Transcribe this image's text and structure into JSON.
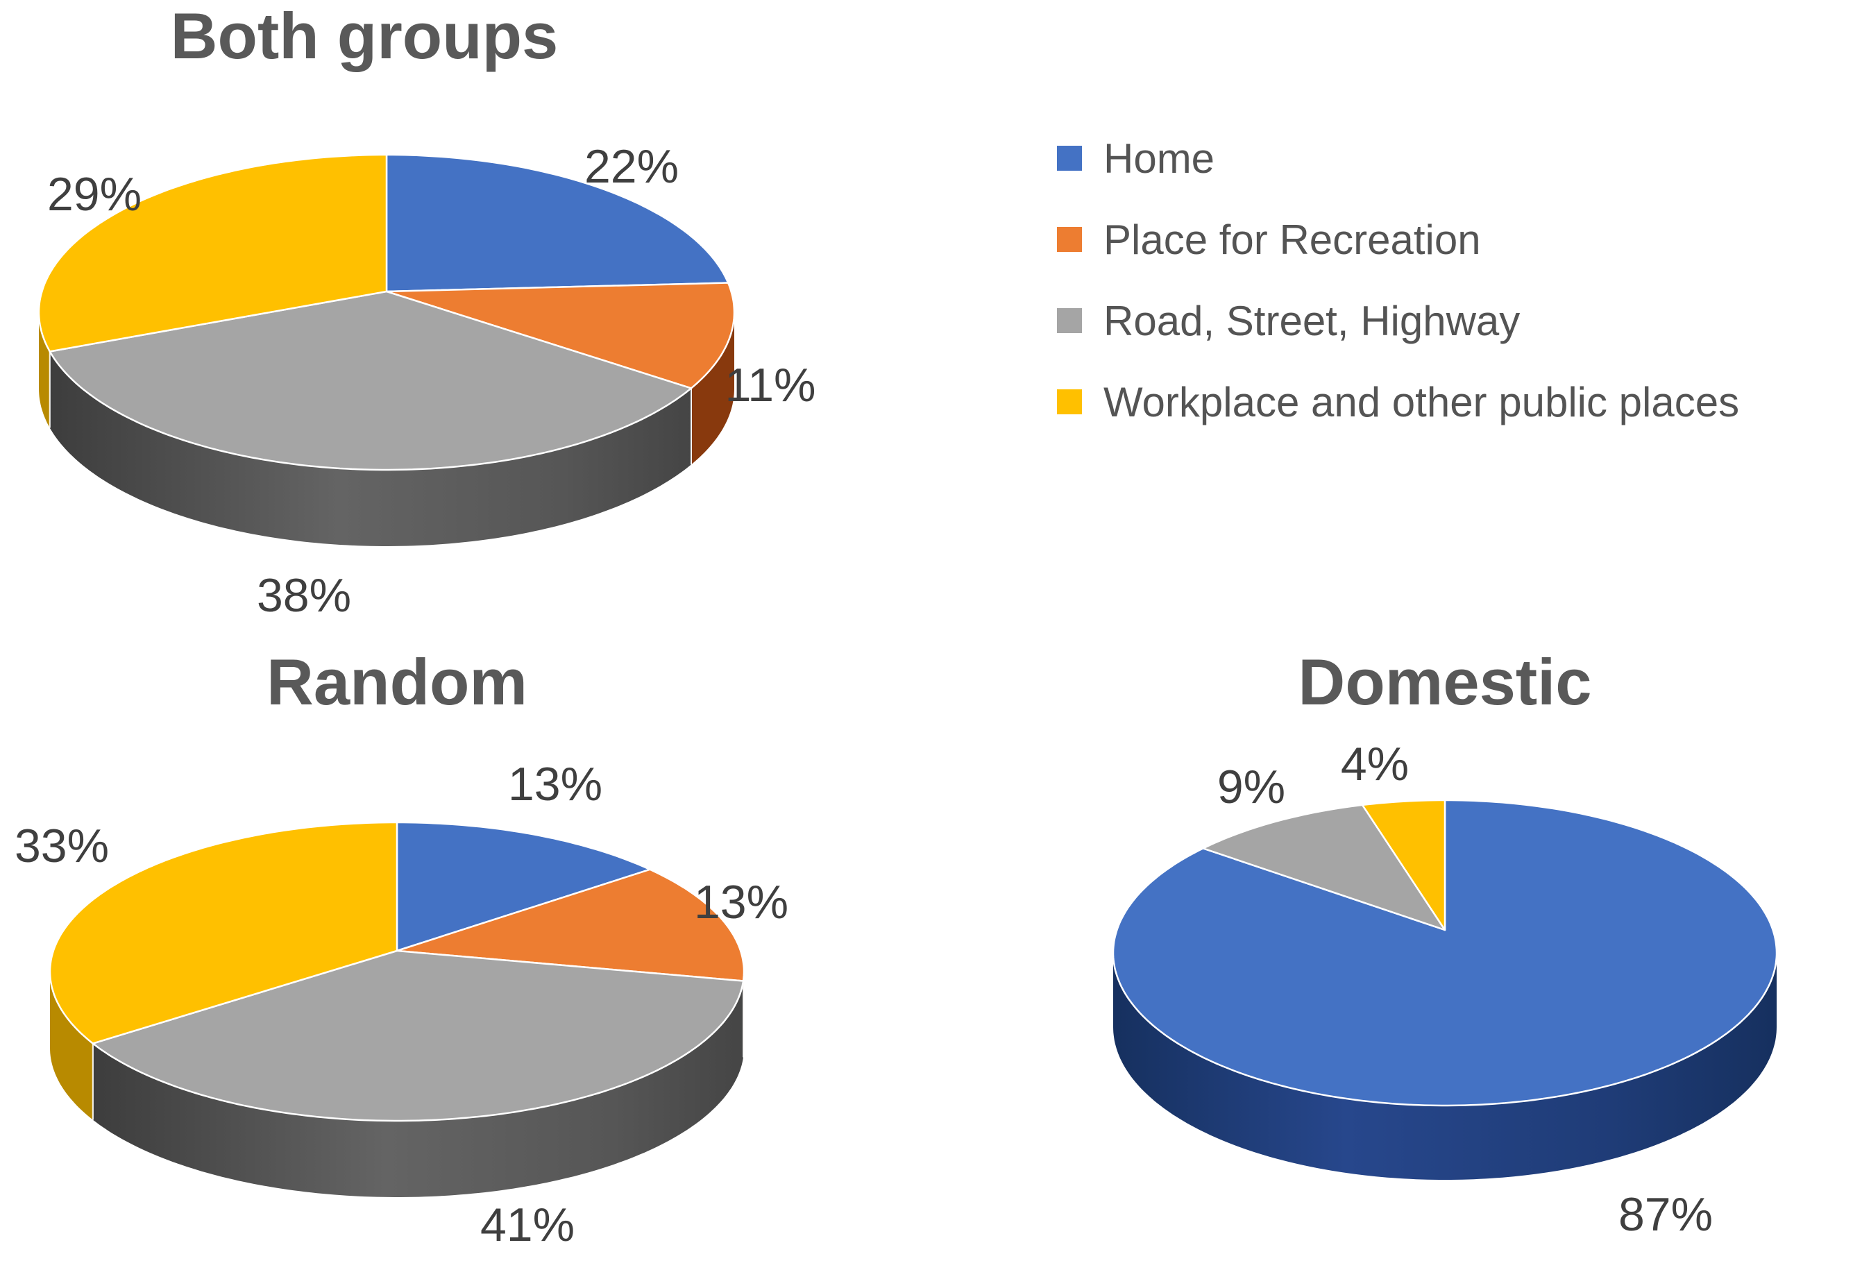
{
  "page": {
    "background": "#ffffff",
    "title_color": "#595959",
    "label_color": "#3f3f3f"
  },
  "legend": {
    "position": "upper right",
    "items": [
      {
        "label": "Home",
        "color": "#4472C4"
      },
      {
        "label": "Place for Recreation",
        "color": "#ED7D31"
      },
      {
        "label": "Road, Street, Highway",
        "color": "#A5A5A5"
      },
      {
        "label": "Workplace and other public places",
        "color": "#FFC000"
      }
    ]
  },
  "chart_data": [
    {
      "type": "pie",
      "style": "3d",
      "title": "Both groups",
      "unit": "percent",
      "start_angle": "12 o'clock, clockwise",
      "slices": [
        {
          "category": "Home",
          "value": 22,
          "label": "22%",
          "color": "#4472C4"
        },
        {
          "category": "Place for Recreation",
          "value": 11,
          "label": "11%",
          "color": "#ED7D31"
        },
        {
          "category": "Road, Street, Highway",
          "value": 38,
          "label": "38%",
          "color": "#A5A5A5"
        },
        {
          "category": "Workplace and other public places",
          "value": 29,
          "label": "29%",
          "color": "#FFC000"
        }
      ]
    },
    {
      "type": "pie",
      "style": "3d",
      "title": "Random",
      "unit": "percent",
      "start_angle": "12 o'clock, clockwise",
      "slices": [
        {
          "category": "Home",
          "value": 13,
          "label": "13%",
          "color": "#4472C4"
        },
        {
          "category": "Place for Recreation",
          "value": 13,
          "label": "13%",
          "color": "#ED7D31"
        },
        {
          "category": "Road, Street, Highway",
          "value": 41,
          "label": "41%",
          "color": "#A5A5A5"
        },
        {
          "category": "Workplace and other public places",
          "value": 33,
          "label": "33%",
          "color": "#FFC000"
        }
      ]
    },
    {
      "type": "pie",
      "style": "3d",
      "title": "Domestic",
      "unit": "percent",
      "start_angle": "12 o'clock, clockwise",
      "slices": [
        {
          "category": "Home",
          "value": 87,
          "label": "87%",
          "color": "#4472C4"
        },
        {
          "category": "Road, Street, Highway",
          "value": 9,
          "label": "9%",
          "color": "#A5A5A5"
        },
        {
          "category": "Workplace and other public places",
          "value": 4,
          "label": "4%",
          "color": "#FFC000"
        }
      ]
    }
  ]
}
